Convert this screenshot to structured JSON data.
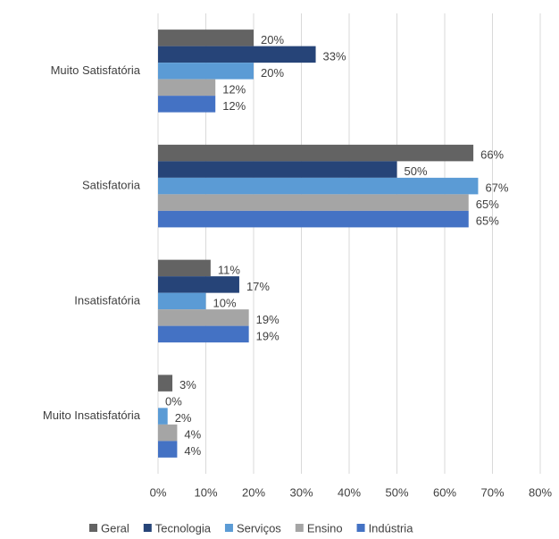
{
  "chart_data": {
    "type": "bar",
    "orientation": "horizontal",
    "categories": [
      "Muito Satisfatória",
      "Satisfatoria",
      "Insatisfatória",
      "Muito Insatisfatória"
    ],
    "series": [
      {
        "name": "Geral",
        "color": "#636363",
        "values": [
          20,
          66,
          11,
          3
        ],
        "value_labels": [
          "20%",
          "66%",
          "11%",
          "3%"
        ]
      },
      {
        "name": "Tecnologia",
        "color": "#264478",
        "values": [
          33,
          50,
          17,
          0
        ],
        "value_labels": [
          "33%",
          "50%",
          "17%",
          "0%"
        ]
      },
      {
        "name": "Serviços",
        "color": "#5b9bd5",
        "values": [
          20,
          67,
          10,
          2
        ],
        "value_labels": [
          "20%",
          "67%",
          "10%",
          "2%"
        ]
      },
      {
        "name": "Ensino",
        "color": "#a5a5a5",
        "values": [
          12,
          65,
          19,
          4
        ],
        "value_labels": [
          "12%",
          "65%",
          "19%",
          "4%"
        ]
      },
      {
        "name": "Indústria",
        "color": "#4472c4",
        "values": [
          12,
          65,
          19,
          4
        ],
        "value_labels": [
          "12%",
          "65%",
          "19%",
          "4%"
        ]
      }
    ],
    "xlim": [
      0,
      80
    ],
    "xticks": [
      {
        "value": 0,
        "label": "0%"
      },
      {
        "value": 10,
        "label": "10%"
      },
      {
        "value": 20,
        "label": "20%"
      },
      {
        "value": 30,
        "label": "30%"
      },
      {
        "value": 40,
        "label": "40%"
      },
      {
        "value": 50,
        "label": "50%"
      },
      {
        "value": 60,
        "label": "60%"
      },
      {
        "value": 70,
        "label": "70%"
      },
      {
        "value": 80,
        "label": "80%"
      }
    ],
    "grid": true,
    "legend": "bottom"
  }
}
